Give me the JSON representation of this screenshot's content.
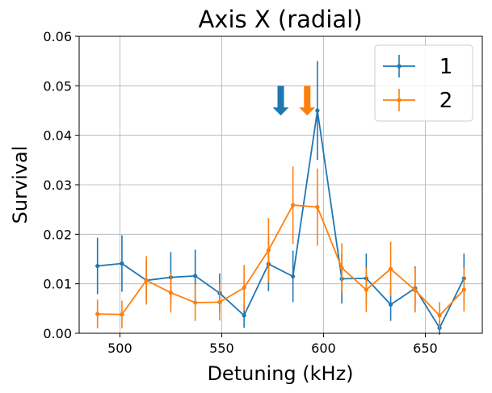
{
  "chart_data": {
    "type": "line",
    "title": "Axis X (radial)",
    "xlabel": "Detuning (kHz)",
    "ylabel": "Survival",
    "xlim": [
      480,
      678
    ],
    "ylim": [
      0,
      0.06
    ],
    "xticks": [
      500,
      550,
      600,
      650
    ],
    "yticks": [
      0.0,
      0.01,
      0.02,
      0.03,
      0.04,
      0.05,
      0.06
    ],
    "grid": true,
    "legend_position": "top-right",
    "series": [
      {
        "name": "1",
        "color": "#1f77b4",
        "x": [
          489,
          501,
          513,
          525,
          537,
          549,
          561,
          573,
          585,
          597,
          609,
          621,
          633,
          645,
          657,
          669
        ],
        "y": [
          0.0136,
          0.0141,
          0.0107,
          0.0113,
          0.0116,
          0.0081,
          0.0036,
          0.014,
          0.0115,
          0.045,
          0.011,
          0.0111,
          0.0058,
          0.0091,
          0.0011,
          0.0111
        ],
        "yerr": [
          0.0057,
          0.0057,
          0.004,
          0.0051,
          0.0053,
          0.004,
          0.0025,
          0.0055,
          0.0052,
          0.01,
          0.005,
          0.005,
          0.0033,
          0.0044,
          0.0014,
          0.005
        ]
      },
      {
        "name": "2",
        "color": "#ff7f0e",
        "x": [
          489,
          501,
          513,
          525,
          537,
          549,
          561,
          573,
          585,
          597,
          609,
          621,
          633,
          645,
          657,
          669
        ],
        "y": [
          0.0039,
          0.0038,
          0.0107,
          0.0082,
          0.0062,
          0.0063,
          0.0092,
          0.0168,
          0.0259,
          0.0255,
          0.0132,
          0.0088,
          0.013,
          0.0087,
          0.0036,
          0.0088
        ],
        "yerr": [
          0.0029,
          0.0028,
          0.0049,
          0.004,
          0.0037,
          0.0037,
          0.0046,
          0.0065,
          0.0078,
          0.0078,
          0.005,
          0.0045,
          0.0055,
          0.0045,
          0.0027,
          0.0044
        ]
      }
    ],
    "annotations": [
      {
        "type": "arrow-down",
        "x": 579,
        "y_top": 0.05,
        "y_bottom": 0.044,
        "color": "#1f77b4"
      },
      {
        "type": "arrow-down",
        "x": 592,
        "y_top": 0.05,
        "y_bottom": 0.044,
        "color": "#ff7f0e"
      }
    ]
  }
}
